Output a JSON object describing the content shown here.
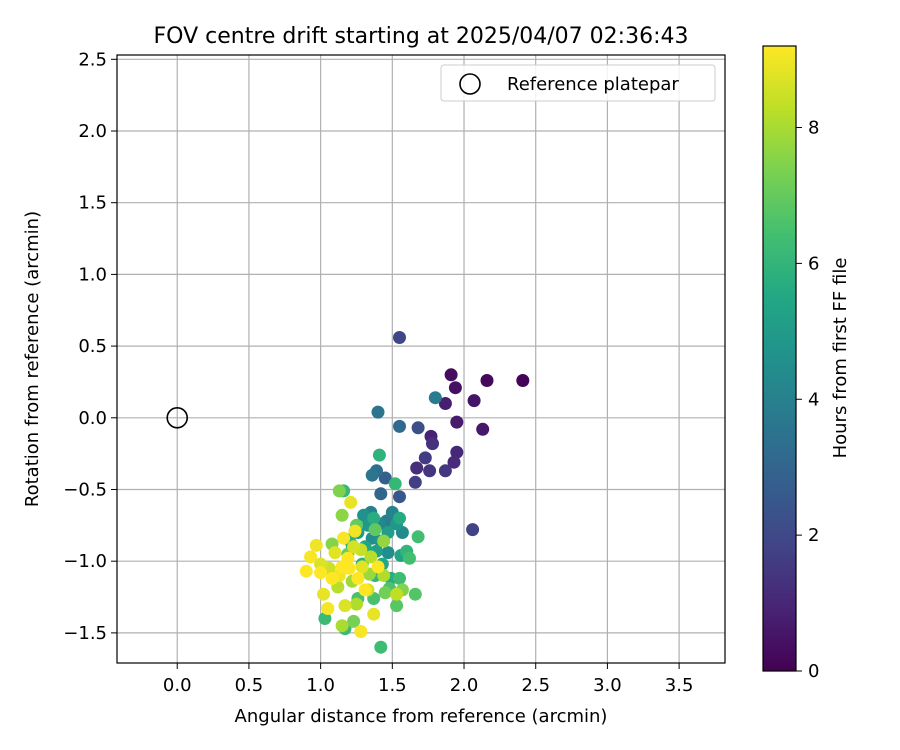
{
  "chart_data": {
    "type": "scatter",
    "title": "FOV centre drift starting at 2025/04/07 02:36:43",
    "xlabel": "Angular distance from reference (arcmin)",
    "ylabel": "Rotation from reference (arcmin)",
    "xlim": [
      -0.42,
      3.82
    ],
    "ylim": [
      -1.71,
      2.53
    ],
    "xticks": [
      0.0,
      0.5,
      1.0,
      1.5,
      2.0,
      2.5,
      3.0,
      3.5
    ],
    "yticks": [
      -1.5,
      -1.0,
      -0.5,
      0.0,
      0.5,
      1.0,
      1.5,
      2.0,
      2.5
    ],
    "xtick_labels": [
      "0.0",
      "0.5",
      "1.0",
      "1.5",
      "2.0",
      "2.5",
      "3.0",
      "3.5"
    ],
    "ytick_labels": [
      "−1.5",
      "−1.0",
      "−0.5",
      "0.0",
      "0.5",
      "1.0",
      "1.5",
      "2.0",
      "2.5"
    ],
    "grid": true,
    "legend": {
      "position": "top-right",
      "entries": [
        {
          "label": "Reference platepar",
          "marker": "open-circle"
        }
      ]
    },
    "reference_point": {
      "x": 0.0,
      "y": 0.0
    },
    "colorbar": {
      "label": "Hours from first FF file",
      "colormap": "viridis",
      "range": [
        0,
        9.2
      ],
      "ticks": [
        0,
        2,
        4,
        6,
        8
      ],
      "tick_labels": [
        "0",
        "2",
        "4",
        "6",
        "8"
      ]
    },
    "series": [
      {
        "color_by": "hours",
        "points": [
          [
            2.41,
            0.26,
            0.1
          ],
          [
            2.16,
            0.26,
            0.2
          ],
          [
            1.91,
            0.3,
            0.3
          ],
          [
            1.94,
            0.21,
            0.4
          ],
          [
            2.07,
            0.12,
            0.5
          ],
          [
            2.13,
            -0.08,
            0.6
          ],
          [
            1.95,
            -0.03,
            0.7
          ],
          [
            1.87,
            0.1,
            0.8
          ],
          [
            1.77,
            -0.13,
            0.9
          ],
          [
            1.95,
            -0.24,
            1.0
          ],
          [
            1.93,
            -0.31,
            1.1
          ],
          [
            1.67,
            -0.35,
            1.2
          ],
          [
            1.78,
            -0.18,
            1.3
          ],
          [
            1.76,
            -0.37,
            1.4
          ],
          [
            1.87,
            -0.37,
            1.5
          ],
          [
            1.73,
            -0.28,
            1.6
          ],
          [
            1.66,
            -0.45,
            1.7
          ],
          [
            2.06,
            -0.78,
            1.8
          ],
          [
            1.55,
            0.56,
            1.9
          ],
          [
            1.68,
            -0.07,
            2.2
          ],
          [
            1.55,
            -0.55,
            2.5
          ],
          [
            1.45,
            -0.42,
            2.8
          ],
          [
            1.42,
            -0.53,
            3.0
          ],
          [
            1.55,
            -0.06,
            3.2
          ],
          [
            1.39,
            -0.37,
            3.3
          ],
          [
            1.4,
            0.04,
            3.5
          ],
          [
            1.36,
            -0.4,
            3.6
          ],
          [
            1.8,
            0.14,
            3.8
          ],
          [
            1.46,
            -0.72,
            3.9
          ],
          [
            1.35,
            -0.66,
            4.0
          ],
          [
            1.5,
            -0.66,
            4.1
          ],
          [
            1.41,
            -0.74,
            4.2
          ],
          [
            1.57,
            -0.8,
            4.3
          ],
          [
            1.36,
            -0.84,
            4.4
          ],
          [
            1.47,
            -0.94,
            4.5
          ],
          [
            1.3,
            -0.68,
            4.6
          ],
          [
            1.42,
            -0.86,
            4.7
          ],
          [
            1.53,
            -0.74,
            4.8
          ],
          [
            1.33,
            -0.75,
            4.9
          ],
          [
            1.26,
            -0.8,
            5.0
          ],
          [
            1.47,
            -0.8,
            5.1
          ],
          [
            1.39,
            -0.93,
            5.2
          ],
          [
            1.56,
            -0.96,
            5.3
          ],
          [
            1.31,
            -0.9,
            5.4
          ],
          [
            1.43,
            -1.02,
            5.5
          ],
          [
            1.22,
            -0.89,
            5.6
          ],
          [
            1.55,
            -0.7,
            5.6
          ],
          [
            1.37,
            -0.7,
            5.7
          ],
          [
            1.49,
            -1.12,
            5.7
          ],
          [
            1.2,
            -0.85,
            5.8
          ],
          [
            1.29,
            -1.02,
            5.8
          ],
          [
            1.41,
            -0.26,
            5.9
          ],
          [
            1.6,
            -0.93,
            6.0
          ],
          [
            1.38,
            -1.1,
            6.0
          ],
          [
            1.16,
            -0.51,
            6.1
          ],
          [
            1.52,
            -0.46,
            6.1
          ],
          [
            1.03,
            -1.4,
            6.2
          ],
          [
            1.17,
            -1.47,
            6.2
          ],
          [
            1.42,
            -1.6,
            6.3
          ],
          [
            1.55,
            -1.12,
            6.3
          ],
          [
            1.68,
            -0.83,
            6.4
          ],
          [
            1.62,
            -0.98,
            6.4
          ],
          [
            1.26,
            -1.26,
            6.5
          ],
          [
            1.37,
            -1.26,
            6.5
          ],
          [
            1.48,
            -1.19,
            6.6
          ],
          [
            1.66,
            -1.23,
            6.7
          ],
          [
            1.53,
            -1.31,
            6.8
          ],
          [
            1.38,
            -0.78,
            6.9
          ],
          [
            1.25,
            -0.75,
            7.0
          ],
          [
            1.19,
            -0.95,
            7.1
          ],
          [
            1.45,
            -1.22,
            7.2
          ],
          [
            1.23,
            -1.42,
            7.3
          ],
          [
            1.13,
            -0.51,
            7.4
          ],
          [
            1.57,
            -1.2,
            7.5
          ],
          [
            1.08,
            -0.88,
            7.5
          ],
          [
            1.15,
            -0.68,
            7.6
          ],
          [
            1.44,
            -0.86,
            7.7
          ],
          [
            1.34,
            -1.09,
            7.8
          ],
          [
            1.22,
            -1.14,
            7.9
          ],
          [
            1.15,
            -1.45,
            8.0
          ],
          [
            1.25,
            -1.3,
            8.1
          ],
          [
            1.44,
            -1.1,
            8.1
          ],
          [
            1.12,
            -1.18,
            8.2
          ],
          [
            1.35,
            -0.97,
            8.2
          ],
          [
            1.53,
            -1.23,
            8.3
          ],
          [
            1.28,
            -0.92,
            8.4
          ],
          [
            1.06,
            -1.05,
            8.5
          ],
          [
            1.33,
            -1.2,
            8.5
          ],
          [
            1.23,
            -0.9,
            8.6
          ],
          [
            1.17,
            -1.31,
            8.7
          ],
          [
            1.0,
            -1.02,
            8.7
          ],
          [
            1.1,
            -0.94,
            8.8
          ],
          [
            1.29,
            -1.04,
            8.8
          ],
          [
            1.02,
            -1.23,
            8.9
          ],
          [
            1.37,
            -1.37,
            8.9
          ],
          [
            1.21,
            -0.59,
            8.9
          ],
          [
            0.97,
            -0.89,
            9.0
          ],
          [
            1.24,
            -0.79,
            9.0
          ],
          [
            1.13,
            -1.1,
            9.0
          ],
          [
            1.28,
            -1.49,
            9.1
          ],
          [
            1.16,
            -0.84,
            9.1
          ],
          [
            1.05,
            -1.33,
            9.1
          ],
          [
            0.93,
            -0.97,
            9.1
          ],
          [
            1.2,
            -1.05,
            9.2
          ],
          [
            1.08,
            -1.12,
            9.2
          ],
          [
            0.9,
            -1.07,
            9.2
          ],
          [
            1.31,
            -1.2,
            9.2
          ],
          [
            1.15,
            -1.04,
            9.2
          ],
          [
            1.0,
            -1.08,
            9.2
          ],
          [
            1.26,
            -1.12,
            9.2
          ],
          [
            1.19,
            -0.98,
            9.2
          ],
          [
            1.4,
            -1.04,
            9.2
          ]
        ]
      }
    ]
  }
}
